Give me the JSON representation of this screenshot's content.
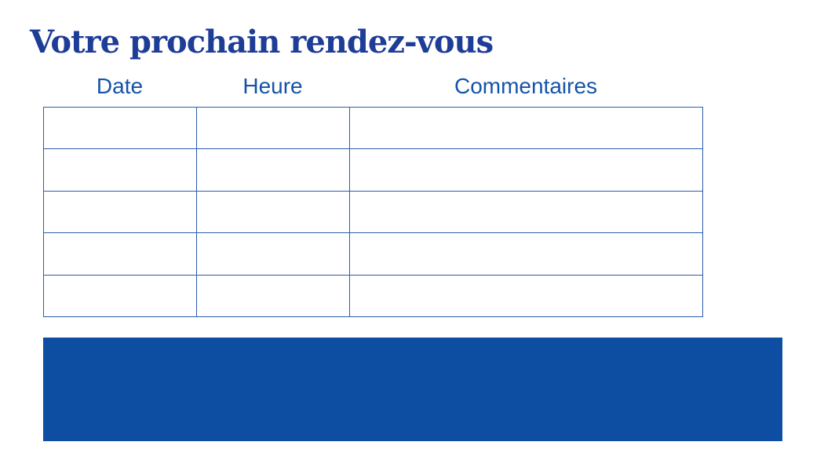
{
  "page": {
    "title": "Votre prochain rendez-vous"
  },
  "table": {
    "headers": [
      "Date",
      "Heure",
      "Commentaires"
    ],
    "rows": [
      [
        "",
        "",
        ""
      ],
      [
        "",
        "",
        ""
      ],
      [
        "",
        "",
        ""
      ],
      [
        "",
        "",
        ""
      ],
      [
        "",
        "",
        ""
      ]
    ]
  },
  "colors": {
    "title_text": "#1e3d96",
    "header_text": "#1553a8",
    "table_border": "#2a5cab",
    "banner": "#0d4da2",
    "background": "#ffffff"
  }
}
